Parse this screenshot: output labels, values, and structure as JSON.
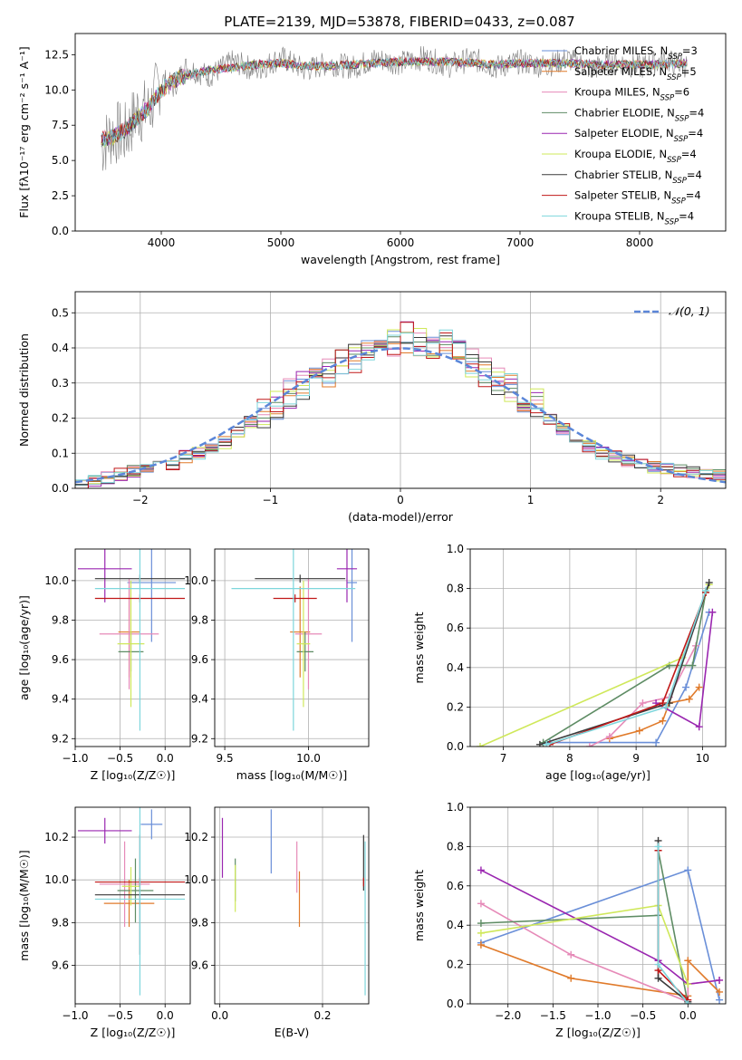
{
  "figure_title": "PLATE=2139, MJD=53878, FIBERID=0433, z=0.087",
  "colors": {
    "chabrier_miles": "#6a8fd8",
    "salpeter_miles": "#e07a2a",
    "kroupa_miles": "#e68ab8",
    "chabrier_elodie": "#5e8c64",
    "salpeter_elodie": "#9a26b0",
    "kroupa_elodie": "#cfe85a",
    "chabrier_stelib": "#3a3a3a",
    "salpeter_stelib": "#c01818",
    "kroupa_stelib": "#7ed6dc",
    "data": "#808080",
    "normal": "#5b86d8",
    "grid": "#b0b0b0"
  },
  "legend_entries": [
    "Chabrier MILES, N_SSP=3",
    "Salpeter MILES, N_SSP=5",
    "Kroupa MILES, N_SSP=6",
    "Chabrier ELODIE, N_SSP=4",
    "Salpeter ELODIE, N_SSP=4",
    "Kroupa ELODIE, N_SSP=4",
    "Chabrier STELIB, N_SSP=4",
    "Salpeter STELIB, N_SSP=4",
    "Kroupa STELIB, N_SSP=4"
  ],
  "chart_data": [
    {
      "id": "spectrum",
      "type": "line",
      "xlabel": "wavelength [Angstrom, rest frame]",
      "ylabel": "Flux [fλ10⁻¹⁷ erg cm⁻² s⁻¹ A⁻¹]",
      "xlim": [
        3280,
        8720
      ],
      "ylim": [
        0,
        14
      ],
      "xticks": [
        4000,
        5000,
        6000,
        7000,
        8000
      ],
      "yticks": [
        0.0,
        2.5,
        5.0,
        7.5,
        10.0,
        12.5
      ],
      "grid": false,
      "legend": "right",
      "x": [
        3500,
        3600,
        3700,
        3800,
        3900,
        4000,
        4100,
        4200,
        4400,
        4600,
        4800,
        5000,
        5200,
        5400,
        5600,
        5800,
        6000,
        6200,
        6400,
        6600,
        6800,
        7000,
        7200,
        7400,
        7600,
        7800,
        8000,
        8200,
        8400
      ],
      "series": [
        {
          "name": "Chabrier MILES, N_SSP=3",
          "values": [
            6.5,
            6.7,
            7.2,
            8.0,
            8.8,
            10.0,
            10.6,
            11.0,
            11.4,
            11.6,
            11.8,
            11.9,
            11.7,
            11.7,
            11.8,
            11.9,
            12.0,
            12.0,
            12.0,
            11.9,
            11.8,
            11.9,
            11.9,
            11.9,
            11.8,
            11.8,
            11.8,
            11.8,
            11.9
          ]
        },
        {
          "name": "data",
          "values": [
            6.0,
            7.0,
            6.8,
            8.5,
            8.5,
            10.8,
            10.2,
            11.6,
            11.0,
            12.0,
            11.4,
            12.3,
            11.4,
            11.9,
            11.6,
            12.2,
            11.9,
            12.3,
            11.7,
            12.2,
            11.6,
            12.0,
            11.7,
            12.2,
            11.5,
            12.0,
            11.6,
            12.1,
            11.7
          ]
        }
      ]
    },
    {
      "id": "residuals",
      "type": "histogram",
      "xlabel": "(data-model)/error",
      "ylabel": "Normed distribution",
      "xlim": [
        -2.5,
        2.5
      ],
      "ylim": [
        0,
        0.56
      ],
      "xticks": [
        -2,
        -1,
        0,
        1,
        2
      ],
      "yticks": [
        0.0,
        0.1,
        0.2,
        0.3,
        0.4,
        0.5
      ],
      "grid": true,
      "legend": "top-right",
      "legend_label": "𝒩(0, 1)",
      "bin_edges": [
        -2.5,
        -2.4,
        -2.3,
        -2.2,
        -2.1,
        -2.0,
        -1.9,
        -1.8,
        -1.7,
        -1.6,
        -1.5,
        -1.4,
        -1.3,
        -1.2,
        -1.1,
        -1.0,
        -0.9,
        -0.8,
        -0.7,
        -0.6,
        -0.5,
        -0.4,
        -0.3,
        -0.2,
        -0.1,
        0.0,
        0.1,
        0.2,
        0.3,
        0.4,
        0.5,
        0.6,
        0.7,
        0.8,
        0.9,
        1.0,
        1.1,
        1.2,
        1.3,
        1.4,
        1.5,
        1.6,
        1.7,
        1.8,
        1.9,
        2.0,
        2.1,
        2.2,
        2.3,
        2.4,
        2.5
      ],
      "base_values": [
        0.015,
        0.022,
        0.03,
        0.04,
        0.05,
        0.055,
        0.06,
        0.07,
        0.09,
        0.1,
        0.11,
        0.13,
        0.16,
        0.19,
        0.21,
        0.24,
        0.27,
        0.29,
        0.31,
        0.33,
        0.35,
        0.37,
        0.39,
        0.41,
        0.42,
        0.43,
        0.42,
        0.41,
        0.42,
        0.4,
        0.36,
        0.33,
        0.31,
        0.29,
        0.26,
        0.24,
        0.2,
        0.17,
        0.14,
        0.12,
        0.1,
        0.09,
        0.08,
        0.07,
        0.06,
        0.055,
        0.05,
        0.045,
        0.04,
        0.035
      ],
      "gaussian": {
        "mean": 0,
        "sigma": 1,
        "peak": 0.399
      }
    },
    {
      "id": "age_vs_Z",
      "type": "errorbar",
      "xlabel": "Z [log₁₀(Z/Z☉)]",
      "ylabel": "age [log₁₀(age/yr)]",
      "xlim": [
        -1.0,
        0.28
      ],
      "ylim": [
        9.16,
        10.16
      ],
      "xticks": [
        -1.0,
        -0.5,
        0.0
      ],
      "yticks": [
        9.2,
        9.4,
        9.6,
        9.8,
        10.0
      ],
      "grid": true,
      "points": [
        {
          "series": 0,
          "x": -0.15,
          "y": 9.99,
          "xerr": 0.27,
          "yerr": 0.3
        },
        {
          "series": 1,
          "x": -0.4,
          "y": 9.74,
          "xerr": 0.12,
          "yerr": 0.23
        },
        {
          "series": 2,
          "x": -0.4,
          "y": 9.73,
          "xerr": 0.33,
          "yerr": 0.28
        },
        {
          "series": 3,
          "x": -0.38,
          "y": 9.64,
          "xerr": 0.14,
          "yerr": 0.1
        },
        {
          "series": 4,
          "x": -0.67,
          "y": 10.06,
          "xerr": 0.3,
          "yerr": 0.17
        },
        {
          "series": 5,
          "x": -0.38,
          "y": 9.68,
          "xerr": 0.15,
          "yerr": 0.32
        },
        {
          "series": 6,
          "x": -0.28,
          "y": 10.01,
          "xerr": 0.5,
          "yerr": 0.02
        },
        {
          "series": 7,
          "x": -0.28,
          "y": 9.91,
          "xerr": 0.5,
          "yerr": 0.02
        },
        {
          "series": 8,
          "x": -0.28,
          "y": 9.96,
          "xerr": 0.5,
          "yerr": 0.72
        }
      ]
    },
    {
      "id": "age_vs_mass",
      "type": "errorbar",
      "xlabel": "mass [log₁₀(M/M☉)]",
      "ylabel": "",
      "xlim": [
        9.44,
        10.36
      ],
      "ylim": [
        9.16,
        10.16
      ],
      "xticks": [
        9.5,
        10.0
      ],
      "yticks": [
        9.2,
        9.4,
        9.6,
        9.8,
        10.0
      ],
      "grid": true,
      "points": [
        {
          "series": 0,
          "x": 10.26,
          "y": 9.99,
          "xerr": 0.03,
          "yerr": 0.3
        },
        {
          "series": 1,
          "x": 9.95,
          "y": 9.74,
          "xerr": 0.06,
          "yerr": 0.23
        },
        {
          "series": 2,
          "x": 10.0,
          "y": 9.73,
          "xerr": 0.08,
          "yerr": 0.28
        },
        {
          "series": 3,
          "x": 9.98,
          "y": 9.64,
          "xerr": 0.05,
          "yerr": 0.1
        },
        {
          "series": 4,
          "x": 10.23,
          "y": 10.06,
          "xerr": 0.06,
          "yerr": 0.17
        },
        {
          "series": 5,
          "x": 9.97,
          "y": 9.68,
          "xerr": 0.04,
          "yerr": 0.32
        },
        {
          "series": 6,
          "x": 9.95,
          "y": 10.01,
          "xerr": 0.27,
          "yerr": 0.02
        },
        {
          "series": 7,
          "x": 9.92,
          "y": 9.91,
          "xerr": 0.13,
          "yerr": 0.02
        },
        {
          "series": 8,
          "x": 9.91,
          "y": 9.96,
          "xerr": 0.37,
          "yerr": 0.72
        }
      ]
    },
    {
      "id": "mass_weight_vs_age",
      "type": "line",
      "xlabel": "age [log₁₀(age/yr)]",
      "ylabel": "mass weight",
      "xlim": [
        6.5,
        10.35
      ],
      "ylim": [
        0,
        1.0
      ],
      "xticks": [
        7,
        8,
        9,
        10
      ],
      "yticks": [
        0.0,
        0.2,
        0.4,
        0.6,
        0.8,
        1.0
      ],
      "grid": true,
      "series": [
        {
          "series": 0,
          "points": [
            [
              7.7,
              0.02
            ],
            [
              9.3,
              0.02
            ],
            [
              9.75,
              0.3
            ],
            [
              10.1,
              0.68
            ]
          ]
        },
        {
          "series": 1,
          "points": [
            [
              8.6,
              0.04
            ],
            [
              9.05,
              0.08
            ],
            [
              9.4,
              0.13
            ],
            [
              9.5,
              0.22
            ],
            [
              9.8,
              0.24
            ],
            [
              9.95,
              0.3
            ]
          ]
        },
        {
          "series": 2,
          "points": [
            [
              8.3,
              0.0
            ],
            [
              8.6,
              0.05
            ],
            [
              9.1,
              0.22
            ],
            [
              9.5,
              0.25
            ],
            [
              9.9,
              0.51
            ]
          ]
        },
        {
          "series": 3,
          "points": [
            [
              7.6,
              0.02
            ],
            [
              9.5,
              0.41
            ],
            [
              9.85,
              0.41
            ],
            [
              10.05,
              0.78
            ]
          ]
        },
        {
          "series": 4,
          "points": [
            [
              9.3,
              0.22
            ],
            [
              9.95,
              0.1
            ],
            [
              10.15,
              0.68
            ]
          ]
        },
        {
          "series": 5,
          "points": [
            [
              6.65,
              0.0
            ],
            [
              9.7,
              0.45
            ],
            [
              10.1,
              0.82
            ]
          ]
        },
        {
          "series": 6,
          "points": [
            [
              7.55,
              0.01
            ],
            [
              9.5,
              0.22
            ],
            [
              10.1,
              0.83
            ]
          ]
        },
        {
          "series": 7,
          "points": [
            [
              7.7,
              0.01
            ],
            [
              9.4,
              0.22
            ],
            [
              10.05,
              0.78
            ]
          ]
        },
        {
          "series": 8,
          "points": [
            [
              7.65,
              0.01
            ],
            [
              9.45,
              0.2
            ],
            [
              10.05,
              0.79
            ]
          ]
        }
      ]
    },
    {
      "id": "mass_vs_Z",
      "type": "errorbar",
      "xlabel": "Z [log₁₀(Z/Z☉)]",
      "ylabel": "mass [log₁₀(M/M☉)]",
      "xlim": [
        -1.0,
        0.28
      ],
      "ylim": [
        9.42,
        10.34
      ],
      "xticks": [
        -1.0,
        -0.5,
        0.0
      ],
      "yticks": [
        9.6,
        9.8,
        10.0,
        10.2
      ],
      "grid": true,
      "points": [
        {
          "series": 0,
          "x": -0.15,
          "y": 10.26,
          "xerr": 0.12,
          "yerr": 0.07
        },
        {
          "series": 1,
          "x": -0.4,
          "y": 9.89,
          "xerr": 0.28,
          "yerr": 0.11
        },
        {
          "series": 2,
          "x": -0.45,
          "y": 9.98,
          "xerr": 0.28,
          "yerr": 0.2
        },
        {
          "series": 3,
          "x": -0.33,
          "y": 9.95,
          "xerr": 0.2,
          "yerr": 0.15
        },
        {
          "series": 4,
          "x": -0.67,
          "y": 10.23,
          "xerr": 0.3,
          "yerr": 0.06
        },
        {
          "series": 5,
          "x": -0.38,
          "y": 9.97,
          "xerr": 0.1,
          "yerr": 0.09
        },
        {
          "series": 6,
          "x": -0.28,
          "y": 9.93,
          "xerr": 0.5,
          "yerr": 0.28
        },
        {
          "series": 7,
          "x": -0.28,
          "y": 9.99,
          "xerr": 0.5,
          "yerr": 0.02
        },
        {
          "series": 8,
          "x": -0.28,
          "y": 9.91,
          "xerr": 0.5,
          "yerr": 0.45
        }
      ]
    },
    {
      "id": "mass_vs_EBV",
      "type": "errorbar",
      "xlabel": "E(B-V)",
      "ylabel": "",
      "xlim": [
        -0.01,
        0.29
      ],
      "ylim": [
        9.42,
        10.34
      ],
      "xticks": [
        0.0,
        0.2
      ],
      "yticks": [
        9.6,
        9.8,
        10.0,
        10.2
      ],
      "grid": true,
      "points": [
        {
          "series": 0,
          "x": 0.1,
          "y": 10.18,
          "xerr": 0,
          "yerr": 0.15
        },
        {
          "series": 1,
          "x": 0.155,
          "y": 9.91,
          "xerr": 0,
          "yerr": 0.13
        },
        {
          "series": 2,
          "x": 0.15,
          "y": 10.06,
          "xerr": 0,
          "yerr": 0.12
        },
        {
          "series": 3,
          "x": 0.03,
          "y": 10.0,
          "xerr": 0,
          "yerr": 0.1
        },
        {
          "series": 4,
          "x": 0.005,
          "y": 10.15,
          "xerr": 0,
          "yerr": 0.14
        },
        {
          "series": 5,
          "x": 0.03,
          "y": 9.96,
          "xerr": 0,
          "yerr": 0.11
        },
        {
          "series": 6,
          "x": 0.28,
          "y": 10.08,
          "xerr": 0,
          "yerr": 0.13
        },
        {
          "series": 7,
          "x": 0.28,
          "y": 9.99,
          "xerr": 0,
          "yerr": 0.02
        },
        {
          "series": 8,
          "x": 0.283,
          "y": 9.82,
          "xerr": 0,
          "yerr": 0.36
        }
      ]
    },
    {
      "id": "mass_weight_vs_Z",
      "type": "line",
      "xlabel": "Z [log₁₀(Z/Z☉)]",
      "ylabel": "mass weight",
      "xlim": [
        -2.42,
        0.42
      ],
      "ylim": [
        0,
        1.0
      ],
      "xticks": [
        -2.0,
        -1.5,
        -1.0,
        -0.5,
        0.0
      ],
      "yticks": [
        0.0,
        0.2,
        0.4,
        0.6,
        0.8,
        1.0
      ],
      "grid": true,
      "series": [
        {
          "series": 0,
          "points": [
            [
              -2.3,
              0.31
            ],
            [
              0.0,
              0.68
            ],
            [
              0.35,
              0.02
            ]
          ]
        },
        {
          "series": 1,
          "points": [
            [
              -2.3,
              0.3
            ],
            [
              -1.3,
              0.13
            ],
            [
              0.0,
              0.04
            ],
            [
              0.0,
              0.22
            ],
            [
              0.35,
              0.06
            ]
          ]
        },
        {
          "series": 2,
          "points": [
            [
              -2.3,
              0.51
            ],
            [
              -1.3,
              0.25
            ],
            [
              -0.0,
              0.01
            ],
            [
              0.0,
              0.1
            ],
            [
              0.35,
              0.12
            ]
          ]
        },
        {
          "series": 3,
          "points": [
            [
              -2.3,
              0.41
            ],
            [
              -0.33,
              0.45
            ],
            [
              -0.33,
              0.78
            ],
            [
              0.0,
              0.0
            ]
          ]
        },
        {
          "series": 4,
          "points": [
            [
              -2.3,
              0.68
            ],
            [
              -0.33,
              0.22
            ],
            [
              0.0,
              0.1
            ],
            [
              0.35,
              0.12
            ]
          ]
        },
        {
          "series": 5,
          "points": [
            [
              -2.3,
              0.36
            ],
            [
              -0.33,
              0.5
            ],
            [
              0.0,
              0.1
            ]
          ]
        },
        {
          "series": 6,
          "points": [
            [
              -0.33,
              0.83
            ],
            [
              -0.33,
              0.13
            ],
            [
              0.0,
              0.01
            ]
          ]
        },
        {
          "series": 7,
          "points": [
            [
              -0.33,
              0.78
            ],
            [
              -0.33,
              0.17
            ],
            [
              0.0,
              0.02
            ]
          ]
        },
        {
          "series": 8,
          "points": [
            [
              -0.33,
              0.8
            ],
            [
              -0.33,
              0.2
            ],
            [
              0.0,
              0.0
            ]
          ]
        }
      ]
    }
  ]
}
